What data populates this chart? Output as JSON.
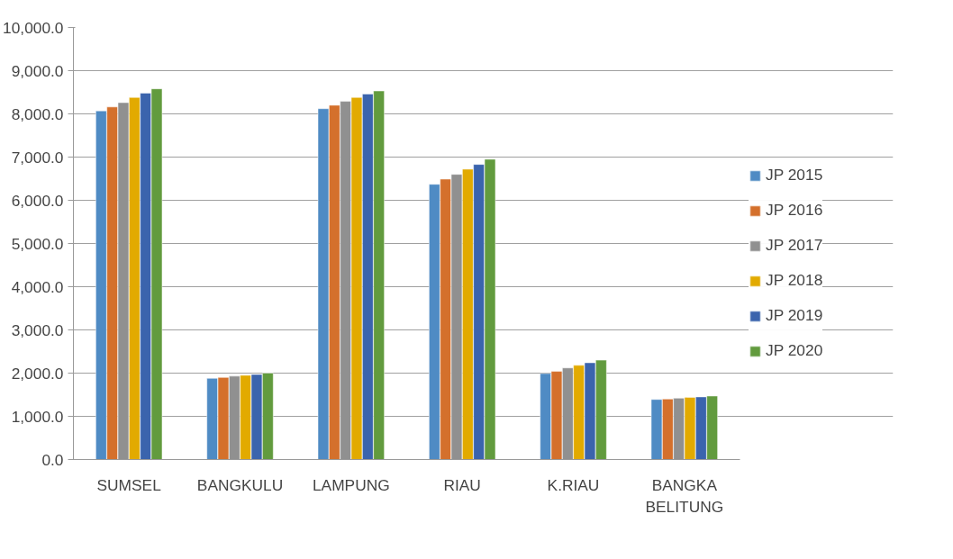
{
  "chart_data": {
    "type": "bar",
    "categories": [
      "SUMSEL",
      "BANGKULU",
      "LAMPUNG",
      "RIAU",
      "K.RIAU",
      "BANGKA BELITUNG"
    ],
    "series": [
      {
        "name": "JP 2015",
        "color": "#4f8bc4",
        "values": [
          8070,
          1880,
          8120,
          6370,
          1990,
          1390
        ]
      },
      {
        "name": "JP 2016",
        "color": "#d4702c",
        "values": [
          8160,
          1900,
          8200,
          6490,
          2040,
          1400
        ]
      },
      {
        "name": "JP 2017",
        "color": "#909090",
        "values": [
          8260,
          1930,
          8290,
          6600,
          2120,
          1420
        ]
      },
      {
        "name": "JP 2018",
        "color": "#e2aa00",
        "values": [
          8380,
          1950,
          8380,
          6720,
          2180,
          1440
        ]
      },
      {
        "name": "JP 2019",
        "color": "#3b64ad",
        "values": [
          8480,
          1970,
          8460,
          6830,
          2240,
          1450
        ]
      },
      {
        "name": "JP 2020",
        "color": "#629b3e",
        "values": [
          8580,
          2000,
          8530,
          6950,
          2300,
          1470
        ]
      }
    ],
    "ylim": [
      0,
      10000
    ],
    "yticks": [
      {
        "value": 0,
        "label": "0.0"
      },
      {
        "value": 1000,
        "label": "1,000.0"
      },
      {
        "value": 2000,
        "label": "2,000.0"
      },
      {
        "value": 3000,
        "label": "3,000.0"
      },
      {
        "value": 4000,
        "label": "4,000.0"
      },
      {
        "value": 5000,
        "label": "5,000.0"
      },
      {
        "value": 6000,
        "label": "6,000.0"
      },
      {
        "value": 7000,
        "label": "7,000.0"
      },
      {
        "value": 8000,
        "label": "8,000.0"
      },
      {
        "value": 9000,
        "label": "9,000.0"
      },
      {
        "value": 10000,
        "label": "10,000.0"
      }
    ],
    "grid": "y",
    "legend": "right"
  }
}
